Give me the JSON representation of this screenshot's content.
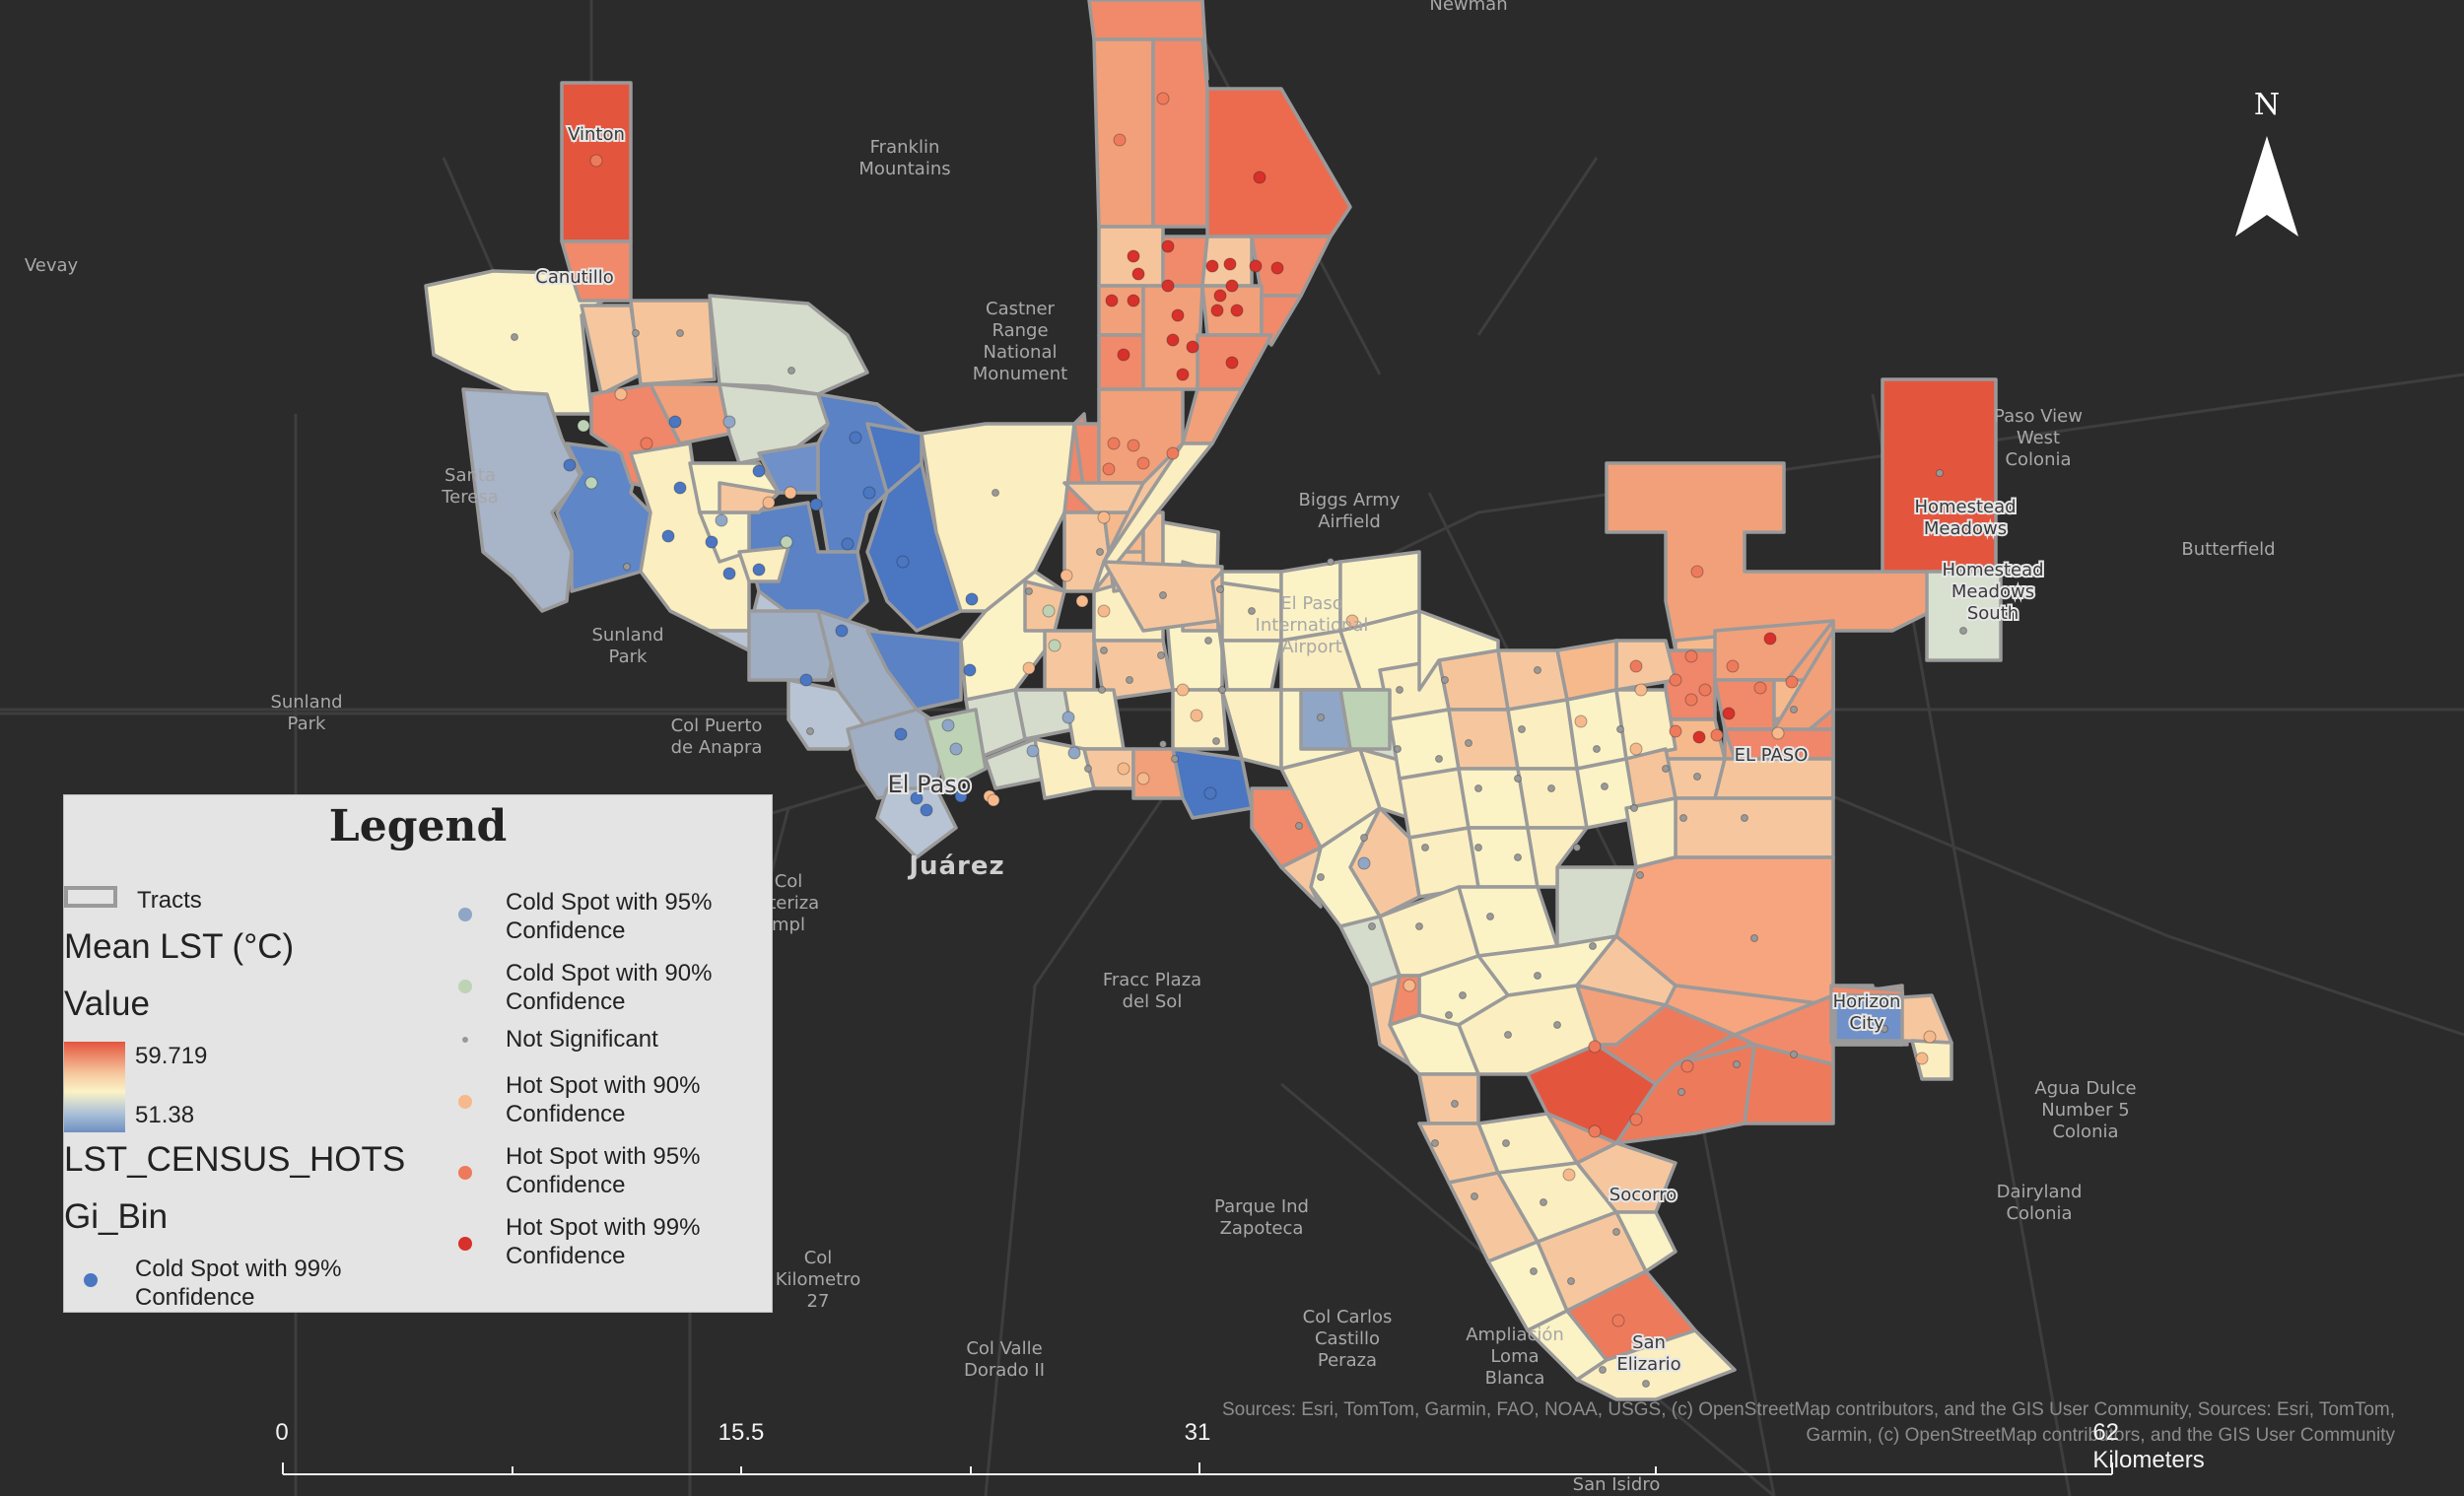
{
  "colors": {
    "background": "#2b2b2b",
    "road": "#3e3e3e",
    "ramp_high": "#e4553e",
    "ramp_mid": "#fbf3c6",
    "ramp_low": "#6f8fc0",
    "cold99": "#4a76c2",
    "cold95": "#8fa6c6",
    "cold90": "#bed3b5",
    "notsig": "#999999",
    "hot90": "#f6b98c",
    "hot95": "#ee7a5c",
    "hot99": "#d8302a"
  },
  "places": {
    "vevay": "Vevay",
    "newman": "Newman",
    "franklin": [
      "Franklin",
      "Mountains"
    ],
    "castner": [
      "Castner",
      "Range",
      "National",
      "Monument"
    ],
    "biggs": [
      "Biggs Army",
      "Airfield"
    ],
    "airport": [
      "El Paso",
      "International",
      "Airport"
    ],
    "butterfield": "Butterfield",
    "paso_view": [
      "Paso View",
      "West",
      "Colonia"
    ],
    "santa_teresa": [
      "Santa",
      "Teresa"
    ],
    "sunland_park": [
      "Sunland",
      "Park"
    ],
    "sunland_park_2": [
      "Sunland",
      "Park"
    ],
    "col_puerto": [
      "Col Puerto",
      "de Anapra"
    ],
    "juarez": "Juárez",
    "col_fronteriza": [
      "Col",
      "nteriza",
      "mpl"
    ],
    "fracc": [
      "Fracc Plaza",
      "del Sol"
    ],
    "agua_dulce": [
      "Agua Dulce",
      "Number 5",
      "Colonia"
    ],
    "dairyland": [
      "Dairyland",
      "Colonia"
    ],
    "parque": [
      "Parque Ind",
      "Zapoteca"
    ],
    "col_km": [
      "Col",
      "Kilometro",
      "27"
    ],
    "col_carlos": [
      "Col Carlos",
      "Castillo",
      "Peraza"
    ],
    "col_valle": [
      "Col Valle",
      "Dorado II"
    ],
    "ampliacion": [
      "Ampliación",
      "Loma",
      "Blanca"
    ],
    "san_isidro": "San Isidro"
  },
  "towns": {
    "vinton": "Vinton",
    "canutillo": "Canutillo",
    "el_paso": "El Paso",
    "el_paso_east": "EL PASO",
    "homestead": [
      "Homestead",
      "Meadows"
    ],
    "homestead_south": [
      "Homestead",
      "Meadows",
      "South"
    ],
    "horizon": [
      "Horizon",
      "City"
    ],
    "socorro": "Socorro",
    "san_elizario": [
      "San",
      "Elizario"
    ]
  },
  "legend": {
    "title": "Legend",
    "tracts": "Tracts",
    "mean_lst": "Mean LST (°C)",
    "value": "Value",
    "high": "59.719",
    "low": "51.38",
    "layer": "LST_CENSUS_HOTS",
    "field": "Gi_Bin",
    "items": {
      "cold99": "Cold Spot with 99% Confidence",
      "cold95": "Cold Spot with 95% Confidence",
      "cold90": "Cold Spot with 90% Confidence",
      "notsig": "Not Significant",
      "hot90": "Hot Spot with 90% Confidence",
      "hot95": "Hot Spot with 95% Confidence",
      "hot99": "Hot Spot with 99% Confidence"
    }
  },
  "north": "N",
  "scale_bar": {
    "labels": [
      "0",
      "15.5",
      "31",
      "62 Kilometers"
    ]
  },
  "credits": "Sources:  Esri, TomTom, Garmin, FAO, NOAA, USGS, (c) OpenStreetMap contributors, and the GIS User Community, Sources:  Esri, TomTom, Garmin, (c) OpenStreetMap contributors, and the GIS User Community"
}
